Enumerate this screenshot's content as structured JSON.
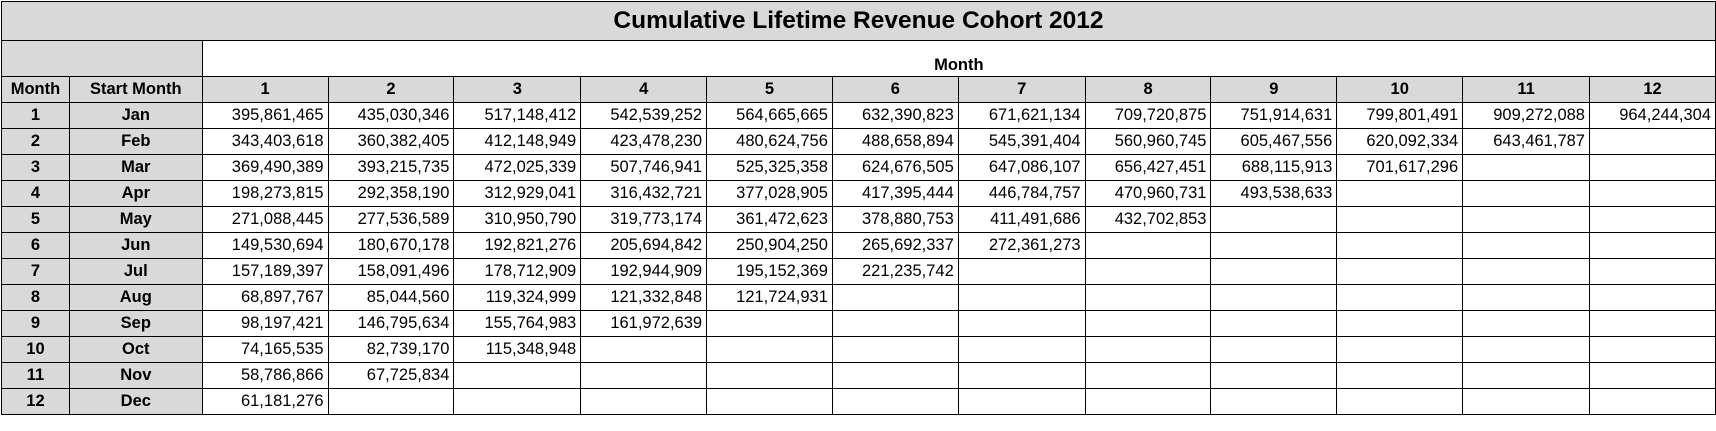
{
  "title": "Cumulative Lifetime Revenue Cohort 2012",
  "group_header": "Month",
  "row_header_labels": {
    "month": "Month",
    "start_month": "Start Month"
  },
  "columns": [
    "1",
    "2",
    "3",
    "4",
    "5",
    "6",
    "7",
    "8",
    "9",
    "10",
    "11",
    "12"
  ],
  "rows": [
    {
      "month": "1",
      "start": "Jan",
      "values": [
        "395,861,465",
        "435,030,346",
        "517,148,412",
        "542,539,252",
        "564,665,665",
        "632,390,823",
        "671,621,134",
        "709,720,875",
        "751,914,631",
        "799,801,491",
        "909,272,088",
        "964,244,304"
      ]
    },
    {
      "month": "2",
      "start": "Feb",
      "values": [
        "343,403,618",
        "360,382,405",
        "412,148,949",
        "423,478,230",
        "480,624,756",
        "488,658,894",
        "545,391,404",
        "560,960,745",
        "605,467,556",
        "620,092,334",
        "643,461,787",
        ""
      ]
    },
    {
      "month": "3",
      "start": "Mar",
      "values": [
        "369,490,389",
        "393,215,735",
        "472,025,339",
        "507,746,941",
        "525,325,358",
        "624,676,505",
        "647,086,107",
        "656,427,451",
        "688,115,913",
        "701,617,296",
        "",
        ""
      ]
    },
    {
      "month": "4",
      "start": "Apr",
      "values": [
        "198,273,815",
        "292,358,190",
        "312,929,041",
        "316,432,721",
        "377,028,905",
        "417,395,444",
        "446,784,757",
        "470,960,731",
        "493,538,633",
        "",
        "",
        ""
      ]
    },
    {
      "month": "5",
      "start": "May",
      "values": [
        "271,088,445",
        "277,536,589",
        "310,950,790",
        "319,773,174",
        "361,472,623",
        "378,880,753",
        "411,491,686",
        "432,702,853",
        "",
        "",
        "",
        ""
      ]
    },
    {
      "month": "6",
      "start": "Jun",
      "values": [
        "149,530,694",
        "180,670,178",
        "192,821,276",
        "205,694,842",
        "250,904,250",
        "265,692,337",
        "272,361,273",
        "",
        "",
        "",
        "",
        ""
      ]
    },
    {
      "month": "7",
      "start": "Jul",
      "values": [
        "157,189,397",
        "158,091,496",
        "178,712,909",
        "192,944,909",
        "195,152,369",
        "221,235,742",
        "",
        "",
        "",
        "",
        "",
        ""
      ]
    },
    {
      "month": "8",
      "start": "Aug",
      "values": [
        "68,897,767",
        "85,044,560",
        "119,324,999",
        "121,332,848",
        "121,724,931",
        "",
        "",
        "",
        "",
        "",
        "",
        ""
      ]
    },
    {
      "month": "9",
      "start": "Sep",
      "values": [
        "98,197,421",
        "146,795,634",
        "155,764,983",
        "161,972,639",
        "",
        "",
        "",
        "",
        "",
        "",
        "",
        ""
      ]
    },
    {
      "month": "10",
      "start": "Oct",
      "values": [
        "74,165,535",
        "82,739,170",
        "115,348,948",
        "",
        "",
        "",
        "",
        "",
        "",
        "",
        "",
        ""
      ]
    },
    {
      "month": "11",
      "start": "Nov",
      "values": [
        "58,786,866",
        "67,725,834",
        "",
        "",
        "",
        "",
        "",
        "",
        "",
        "",
        "",
        ""
      ]
    },
    {
      "month": "12",
      "start": "Dec",
      "values": [
        "61,181,276",
        "",
        "",
        "",
        "",
        "",
        "",
        "",
        "",
        "",
        "",
        ""
      ]
    }
  ]
}
